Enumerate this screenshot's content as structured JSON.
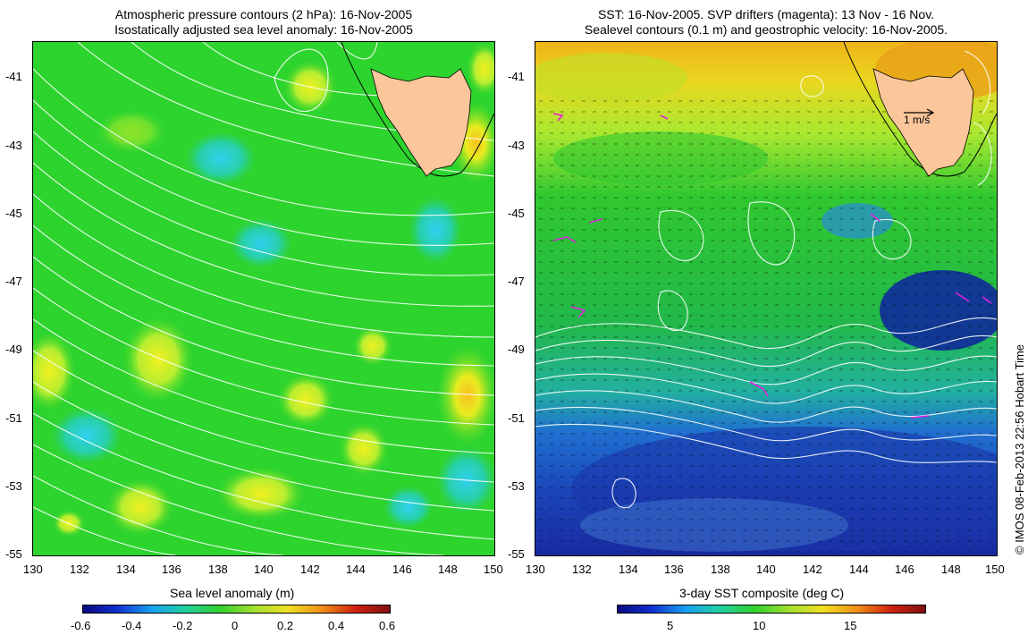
{
  "left_map": {
    "title_line1": "Atmospheric pressure contours (2 hPa): 16-Nov-2005",
    "title_line2": "Isostatically adjusted sea level anomaly: 16-Nov-2005",
    "colorbar_label": "Sea level anomaly (m)",
    "colorbar_ticks": [
      "-0.6",
      "-0.4",
      "-0.2",
      "0",
      "0.2",
      "0.4",
      "0.6"
    ],
    "colors": {
      "background": "#2ad32a",
      "land": "#fac69a"
    }
  },
  "right_map": {
    "title_line1": "SST: 16-Nov-2005. SVP drifters (magenta): 13 Nov - 16 Nov.",
    "title_line2": "Sealevel contours (0.1 m) and geostrophic velocity: 16-Nov-2005.",
    "scale_label": "1 m/s",
    "colorbar_label": "3-day SST composite (deg C)",
    "colorbar_ticks": [
      "5",
      "10",
      "15"
    ],
    "colors": {
      "land": "#fac69a",
      "drifters": "#e020e0"
    }
  },
  "axes": {
    "lat_ticks": [
      "-41",
      "-43",
      "-45",
      "-47",
      "-49",
      "-51",
      "-53",
      "-55"
    ],
    "lon_ticks": [
      "130",
      "132",
      "134",
      "136",
      "138",
      "140",
      "142",
      "144",
      "146",
      "148",
      "150"
    ]
  },
  "copyright": "© IMOS 08-Feb-2013 22:56 Hobart Time"
}
